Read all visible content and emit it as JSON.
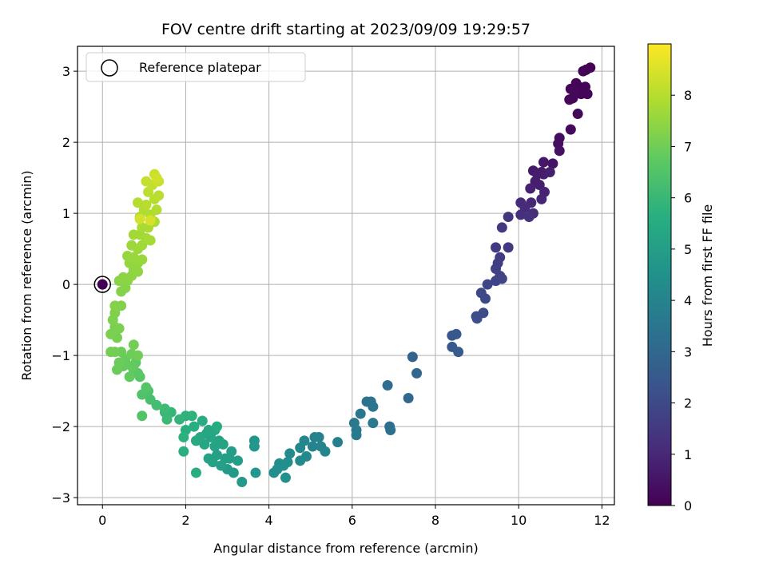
{
  "chart_data": {
    "type": "scatter",
    "title": "FOV centre drift starting at 2023/09/09 19:29:57",
    "xlabel": "Angular distance from reference (arcmin)",
    "ylabel": "Rotation from reference (arcmin)",
    "xlim": [
      -0.6,
      12.3
    ],
    "ylim": [
      -3.1,
      3.35
    ],
    "xticks": [
      0,
      2,
      4,
      6,
      8,
      10,
      12
    ],
    "yticks": [
      -3,
      -2,
      -1,
      0,
      1,
      2,
      3
    ],
    "grid": true,
    "legend": {
      "placement": "upper-left",
      "entries": [
        "Reference platepar"
      ]
    },
    "reference_point": {
      "x": 0,
      "y": 0
    },
    "colorbar": {
      "label": "Hours from first FF file",
      "min": 0,
      "max": 9,
      "ticks": [
        0,
        1,
        2,
        3,
        4,
        5,
        6,
        7,
        8
      ],
      "colormap": "viridis"
    },
    "points": [
      [
        11.72,
        3.05,
        0.05
      ],
      [
        11.62,
        3.02,
        0.06
      ],
      [
        11.55,
        3.0,
        0.07
      ],
      [
        11.38,
        2.83,
        0.08
      ],
      [
        11.45,
        2.78,
        0.09
      ],
      [
        11.25,
        2.75,
        0.1
      ],
      [
        11.6,
        2.78,
        0.11
      ],
      [
        11.3,
        2.62,
        0.12
      ],
      [
        11.5,
        2.68,
        0.13
      ],
      [
        11.65,
        2.68,
        0.14
      ],
      [
        11.35,
        2.72,
        0.15
      ],
      [
        11.22,
        2.6,
        0.16
      ],
      [
        11.42,
        2.4,
        0.18
      ],
      [
        11.25,
        2.18,
        0.2
      ],
      [
        10.98,
        2.06,
        0.3
      ],
      [
        10.95,
        1.98,
        0.35
      ],
      [
        10.98,
        1.88,
        0.4
      ],
      [
        10.82,
        1.7,
        0.5
      ],
      [
        10.6,
        1.72,
        0.55
      ],
      [
        10.55,
        1.58,
        0.6
      ],
      [
        10.35,
        1.6,
        0.65
      ],
      [
        10.45,
        1.55,
        0.7
      ],
      [
        10.6,
        1.55,
        0.72
      ],
      [
        10.4,
        1.45,
        0.75
      ],
      [
        10.75,
        1.58,
        0.78
      ],
      [
        10.5,
        1.4,
        0.8
      ],
      [
        10.28,
        1.35,
        0.85
      ],
      [
        10.62,
        1.3,
        0.9
      ],
      [
        10.55,
        1.2,
        0.95
      ],
      [
        10.3,
        1.15,
        1.0
      ],
      [
        10.05,
        1.15,
        1.05
      ],
      [
        10.15,
        1.08,
        1.1
      ],
      [
        10.35,
        1.0,
        1.15
      ],
      [
        10.05,
        0.98,
        1.2
      ],
      [
        10.25,
        0.95,
        1.25
      ],
      [
        9.75,
        0.95,
        1.35
      ],
      [
        9.6,
        0.8,
        1.45
      ],
      [
        9.75,
        0.52,
        1.5
      ],
      [
        9.45,
        0.52,
        1.55
      ],
      [
        9.55,
        0.38,
        1.6
      ],
      [
        9.5,
        0.3,
        1.65
      ],
      [
        9.45,
        0.22,
        1.7
      ],
      [
        9.55,
        0.12,
        1.75
      ],
      [
        9.45,
        0.05,
        1.8
      ],
      [
        9.6,
        0.08,
        1.85
      ],
      [
        9.25,
        0.0,
        1.9
      ],
      [
        9.1,
        -0.12,
        1.95
      ],
      [
        9.2,
        -0.2,
        2.0
      ],
      [
        9.15,
        -0.4,
        2.05
      ],
      [
        8.98,
        -0.45,
        2.1
      ],
      [
        9.0,
        -0.48,
        2.15
      ],
      [
        8.4,
        -0.72,
        2.4
      ],
      [
        8.5,
        -0.7,
        2.45
      ],
      [
        8.4,
        -0.88,
        2.5
      ],
      [
        8.55,
        -0.95,
        2.55
      ],
      [
        7.45,
        -1.02,
        2.9
      ],
      [
        7.55,
        -1.25,
        2.95
      ],
      [
        6.85,
        -1.42,
        3.2
      ],
      [
        7.35,
        -1.6,
        3.05
      ],
      [
        6.9,
        -2.0,
        3.25
      ],
      [
        6.92,
        -2.05,
        3.3
      ],
      [
        6.35,
        -1.65,
        3.4
      ],
      [
        6.45,
        -1.65,
        3.42
      ],
      [
        6.5,
        -1.72,
        3.45
      ],
      [
        6.2,
        -1.82,
        3.5
      ],
      [
        6.05,
        -1.95,
        3.6
      ],
      [
        6.1,
        -2.05,
        3.62
      ],
      [
        6.5,
        -1.95,
        3.55
      ],
      [
        6.1,
        -2.12,
        3.65
      ],
      [
        5.65,
        -2.22,
        3.85
      ],
      [
        5.2,
        -2.15,
        3.9
      ],
      [
        5.1,
        -2.15,
        3.95
      ],
      [
        5.05,
        -2.28,
        4.0
      ],
      [
        5.25,
        -2.28,
        4.02
      ],
      [
        5.35,
        -2.35,
        4.05
      ],
      [
        4.85,
        -2.2,
        4.1
      ],
      [
        4.75,
        -2.3,
        4.15
      ],
      [
        4.9,
        -2.42,
        4.2
      ],
      [
        4.75,
        -2.48,
        4.25
      ],
      [
        4.5,
        -2.38,
        4.3
      ],
      [
        4.45,
        -2.5,
        4.35
      ],
      [
        4.25,
        -2.52,
        4.4
      ],
      [
        4.35,
        -2.55,
        4.42
      ],
      [
        4.2,
        -2.6,
        4.45
      ],
      [
        4.12,
        -2.65,
        4.48
      ],
      [
        4.4,
        -2.72,
        4.5
      ],
      [
        3.65,
        -2.2,
        4.7
      ],
      [
        3.65,
        -2.28,
        4.72
      ],
      [
        3.68,
        -2.65,
        4.75
      ],
      [
        3.35,
        -2.78,
        4.8
      ],
      [
        3.15,
        -2.65,
        4.85
      ],
      [
        3.0,
        -2.6,
        4.9
      ],
      [
        3.05,
        -2.45,
        4.95
      ],
      [
        3.25,
        -2.48,
        5.0
      ],
      [
        3.1,
        -2.35,
        5.02
      ],
      [
        2.95,
        -2.45,
        5.05
      ],
      [
        2.85,
        -2.55,
        5.08
      ],
      [
        2.75,
        -2.4,
        5.1
      ],
      [
        2.65,
        -2.5,
        5.12
      ],
      [
        2.55,
        -2.45,
        5.15
      ],
      [
        2.7,
        -2.28,
        5.18
      ],
      [
        2.8,
        -2.2,
        5.2
      ],
      [
        2.9,
        -2.25,
        5.22
      ],
      [
        2.6,
        -2.15,
        5.25
      ],
      [
        2.5,
        -2.1,
        5.28
      ],
      [
        2.45,
        -2.25,
        5.3
      ],
      [
        2.7,
        -2.05,
        5.32
      ],
      [
        2.55,
        -2.05,
        5.35
      ],
      [
        2.35,
        -2.15,
        5.4
      ],
      [
        2.25,
        -2.2,
        5.45
      ],
      [
        2.75,
        -2.0,
        5.5
      ],
      [
        2.4,
        -1.92,
        5.55
      ],
      [
        2.25,
        -2.65,
        5.6
      ],
      [
        2.2,
        -2.0,
        5.62
      ],
      [
        2.0,
        -2.05,
        5.65
      ],
      [
        1.95,
        -2.35,
        5.68
      ],
      [
        1.95,
        -2.15,
        5.7
      ],
      [
        2.0,
        -1.85,
        5.75
      ],
      [
        2.15,
        -1.85,
        5.78
      ],
      [
        1.85,
        -1.9,
        5.85
      ],
      [
        1.65,
        -1.8,
        5.9
      ],
      [
        1.5,
        -1.8,
        6.0
      ],
      [
        1.55,
        -1.9,
        6.05
      ],
      [
        1.5,
        -1.75,
        6.1
      ],
      [
        1.3,
        -1.7,
        6.2
      ],
      [
        1.15,
        -1.62,
        6.3
      ],
      [
        1.1,
        -1.5,
        6.4
      ],
      [
        0.95,
        -1.55,
        6.45
      ],
      [
        0.95,
        -1.85,
        6.5
      ],
      [
        1.05,
        -1.45,
        6.55
      ],
      [
        0.9,
        -1.3,
        6.6
      ],
      [
        0.85,
        -1.25,
        6.65
      ],
      [
        0.75,
        -1.2,
        6.7
      ],
      [
        0.8,
        -1.1,
        6.75
      ],
      [
        0.65,
        -1.3,
        6.8
      ],
      [
        0.7,
        -1.15,
        6.82
      ],
      [
        0.5,
        -1.15,
        6.85
      ],
      [
        0.55,
        -1.05,
        6.88
      ],
      [
        0.4,
        -1.1,
        6.9
      ],
      [
        0.35,
        -1.2,
        6.92
      ],
      [
        0.45,
        -0.95,
        6.95
      ],
      [
        0.7,
        -0.98,
        6.97
      ],
      [
        0.85,
        -1.0,
        7.0
      ],
      [
        0.75,
        -0.85,
        7.02
      ],
      [
        0.2,
        -0.95,
        7.05
      ],
      [
        0.3,
        -0.95,
        7.07
      ],
      [
        0.35,
        -0.75,
        7.1
      ],
      [
        0.3,
        -0.6,
        7.12
      ],
      [
        0.4,
        -0.62,
        7.15
      ],
      [
        0.2,
        -0.7,
        7.18
      ],
      [
        0.25,
        -0.5,
        7.2
      ],
      [
        0.3,
        -0.4,
        7.22
      ],
      [
        0.45,
        -0.3,
        7.25
      ],
      [
        0.3,
        -0.3,
        7.28
      ],
      [
        0.45,
        -0.1,
        7.3
      ],
      [
        0.55,
        -0.05,
        7.32
      ],
      [
        0.4,
        0.05,
        7.35
      ],
      [
        0.6,
        0.05,
        7.38
      ],
      [
        0.5,
        0.1,
        7.4
      ],
      [
        0.7,
        0.12,
        7.42
      ],
      [
        0.75,
        0.2,
        7.45
      ],
      [
        0.85,
        0.18,
        7.48
      ],
      [
        0.65,
        0.3,
        7.5
      ],
      [
        0.85,
        0.3,
        7.52
      ],
      [
        0.6,
        0.4,
        7.55
      ],
      [
        0.75,
        0.38,
        7.58
      ],
      [
        0.95,
        0.35,
        7.6
      ],
      [
        0.7,
        0.55,
        7.62
      ],
      [
        0.85,
        0.5,
        7.65
      ],
      [
        0.95,
        0.55,
        7.68
      ],
      [
        0.75,
        0.7,
        7.7
      ],
      [
        0.9,
        0.7,
        7.72
      ],
      [
        1.05,
        0.65,
        7.75
      ],
      [
        1.15,
        0.62,
        7.78
      ],
      [
        0.95,
        0.8,
        7.8
      ],
      [
        1.1,
        0.8,
        7.82
      ],
      [
        1.25,
        0.88,
        7.85
      ],
      [
        0.9,
        0.95,
        7.88
      ],
      [
        1.0,
        1.05,
        7.9
      ],
      [
        1.15,
        0.98,
        7.92
      ],
      [
        1.3,
        1.05,
        7.95
      ],
      [
        0.85,
        1.15,
        7.98
      ],
      [
        1.05,
        1.12,
        8.0
      ],
      [
        1.25,
        1.2,
        8.02
      ],
      [
        1.35,
        1.25,
        8.05
      ],
      [
        1.1,
        1.3,
        8.1
      ],
      [
        1.2,
        1.4,
        8.15
      ],
      [
        1.05,
        1.45,
        8.2
      ],
      [
        1.35,
        1.45,
        8.25
      ],
      [
        1.25,
        1.55,
        8.3
      ],
      [
        1.3,
        1.5,
        8.35
      ],
      [
        0.9,
        0.92,
        8.4
      ],
      [
        1.15,
        0.9,
        8.45
      ]
    ]
  }
}
